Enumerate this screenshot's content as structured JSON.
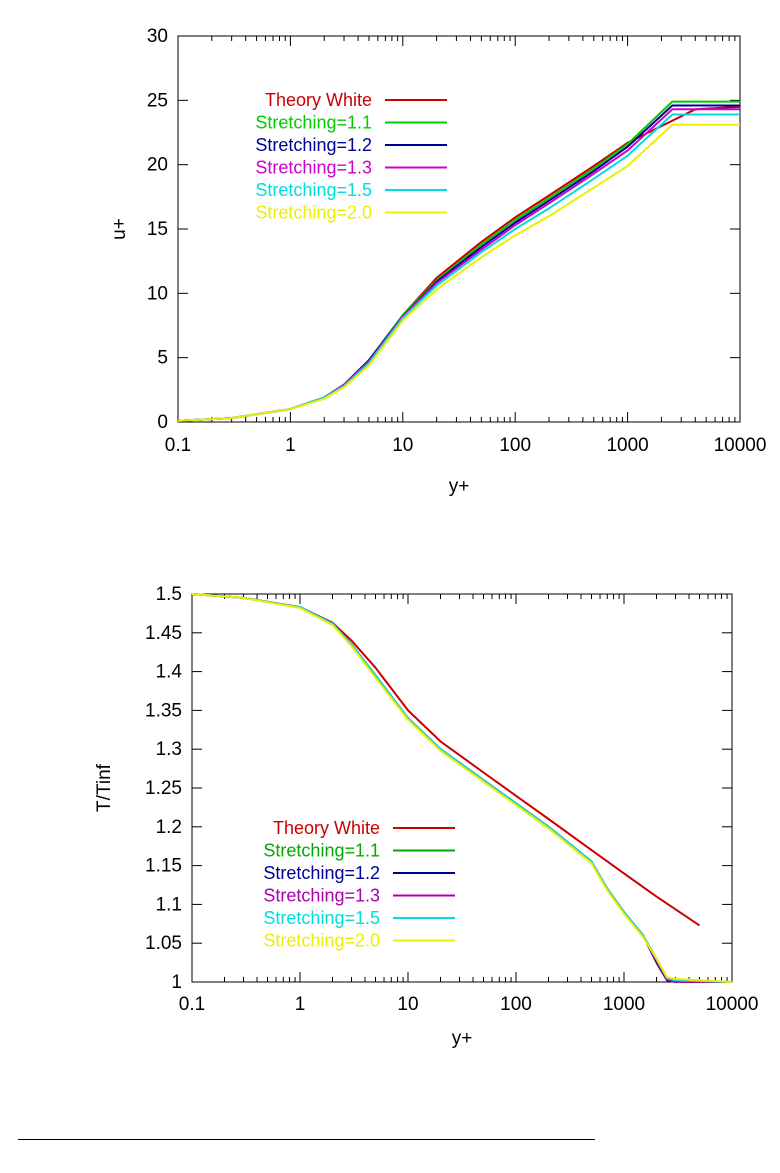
{
  "chart_data": [
    {
      "type": "line",
      "title": "",
      "xlabel": "y+",
      "ylabel": "u+",
      "xscale": "log",
      "xlim": [
        0.1,
        10000
      ],
      "ylim": [
        0,
        30
      ],
      "xticks": [
        "0.1",
        "1",
        "10",
        "100",
        "1000",
        "10000"
      ],
      "yticks": [
        "0",
        "5",
        "10",
        "15",
        "20",
        "25",
        "30"
      ],
      "grid": false,
      "legend_position": "top-left",
      "series": [
        {
          "name": "Theory White",
          "color": "#cc0000",
          "x": [
            0.1,
            0.3,
            1,
            2,
            3,
            5,
            10,
            20,
            50,
            100,
            200,
            500,
            1000,
            2000,
            4000,
            10000
          ],
          "y": [
            0.1,
            0.3,
            1.0,
            1.9,
            2.9,
            4.8,
            8.3,
            11.2,
            14.0,
            15.9,
            17.6,
            19.9,
            21.7,
            23.0,
            24.3,
            24.5
          ]
        },
        {
          "name": "Stretching=1.1",
          "color": "#00cc00",
          "x": [
            0.1,
            0.3,
            1,
            2,
            3,
            5,
            10,
            20,
            50,
            100,
            200,
            500,
            1000,
            2500,
            10000
          ],
          "y": [
            0.1,
            0.3,
            1.0,
            1.9,
            2.9,
            4.8,
            8.3,
            11.0,
            13.8,
            15.7,
            17.4,
            19.7,
            21.6,
            24.9,
            24.9
          ]
        },
        {
          "name": "Stretching=1.2",
          "color": "#000099",
          "x": [
            0.1,
            0.3,
            1,
            2,
            3,
            5,
            10,
            20,
            50,
            100,
            200,
            500,
            1000,
            2500,
            10000
          ],
          "y": [
            0.1,
            0.3,
            1.0,
            1.9,
            2.9,
            4.8,
            8.2,
            10.9,
            13.6,
            15.5,
            17.2,
            19.5,
            21.4,
            24.6,
            24.6
          ]
        },
        {
          "name": "Stretching=1.3",
          "color": "#cc00cc",
          "x": [
            0.1,
            0.3,
            1,
            2,
            3,
            5,
            10,
            20,
            50,
            100,
            200,
            500,
            1000,
            2500,
            10000
          ],
          "y": [
            0.1,
            0.3,
            1.0,
            1.9,
            2.9,
            4.7,
            8.2,
            10.8,
            13.4,
            15.3,
            17.0,
            19.3,
            21.1,
            24.3,
            24.3
          ]
        },
        {
          "name": "Stretching=1.5",
          "color": "#00dddd",
          "x": [
            0.1,
            0.3,
            1,
            2,
            3,
            5,
            10,
            20,
            50,
            100,
            200,
            500,
            1000,
            2500,
            10000
          ],
          "y": [
            0.1,
            0.3,
            1.0,
            1.9,
            2.8,
            4.6,
            8.1,
            10.6,
            13.2,
            15.0,
            16.6,
            18.9,
            20.7,
            23.9,
            23.9
          ]
        },
        {
          "name": "Stretching=2.0",
          "color": "#eeee00",
          "x": [
            0.1,
            0.3,
            1,
            2,
            3,
            5,
            10,
            20,
            50,
            100,
            200,
            500,
            1000,
            2500,
            10000
          ],
          "y": [
            0.1,
            0.3,
            1.0,
            1.8,
            2.7,
            4.4,
            7.9,
            10.3,
            12.8,
            14.5,
            16.0,
            18.2,
            19.9,
            23.1,
            23.1
          ]
        }
      ]
    },
    {
      "type": "line",
      "title": "",
      "xlabel": "y+",
      "ylabel": "T/Tinf",
      "xscale": "log",
      "xlim": [
        0.1,
        10000
      ],
      "ylim": [
        1,
        1.5
      ],
      "xticks": [
        "0.1",
        "1",
        "10",
        "100",
        "1000",
        "10000"
      ],
      "yticks": [
        "1",
        "1.05",
        "1.1",
        "1.15",
        "1.2",
        "1.25",
        "1.3",
        "1.35",
        "1.4",
        "1.45",
        "1.5"
      ],
      "grid": false,
      "legend_position": "bottom-left",
      "series": [
        {
          "name": "Theory White",
          "color": "#cc0000",
          "x": [
            0.1,
            0.3,
            1,
            2,
            3,
            5,
            10,
            20,
            50,
            100,
            200,
            500,
            1000,
            2000,
            5000
          ],
          "y": [
            1.5,
            1.495,
            1.483,
            1.463,
            1.44,
            1.405,
            1.35,
            1.31,
            1.27,
            1.24,
            1.21,
            1.17,
            1.14,
            1.11,
            1.073
          ]
        },
        {
          "name": "Stretching=1.1",
          "color": "#00aa00",
          "x": [
            0.1,
            0.3,
            1,
            2,
            3,
            5,
            10,
            20,
            50,
            100,
            200,
            500,
            700,
            1000,
            1500,
            2000,
            2500,
            3000,
            10000
          ],
          "y": [
            1.5,
            1.495,
            1.483,
            1.462,
            1.435,
            1.395,
            1.34,
            1.3,
            1.26,
            1.23,
            1.2,
            1.155,
            1.12,
            1.09,
            1.06,
            1.03,
            1.004,
            1.002,
            1.0
          ]
        },
        {
          "name": "Stretching=1.2",
          "color": "#000099",
          "x": [
            0.1,
            0.3,
            1,
            2,
            3,
            5,
            10,
            20,
            50,
            100,
            200,
            500,
            700,
            1000,
            1500,
            2000,
            2500,
            3000,
            10000
          ],
          "y": [
            1.5,
            1.495,
            1.483,
            1.462,
            1.435,
            1.395,
            1.34,
            1.3,
            1.26,
            1.23,
            1.2,
            1.155,
            1.12,
            1.09,
            1.06,
            1.025,
            1.002,
            1.0,
            1.0
          ]
        },
        {
          "name": "Stretching=1.3",
          "color": "#aa00aa",
          "x": [
            0.1,
            0.3,
            1,
            2,
            3,
            5,
            10,
            20,
            50,
            100,
            200,
            500,
            700,
            1000,
            1500,
            2000,
            2500,
            3000,
            10000
          ],
          "y": [
            1.5,
            1.495,
            1.483,
            1.462,
            1.435,
            1.395,
            1.34,
            1.3,
            1.26,
            1.23,
            1.2,
            1.155,
            1.12,
            1.09,
            1.06,
            1.027,
            1.003,
            1.0,
            1.0
          ]
        },
        {
          "name": "Stretching=1.5",
          "color": "#00dddd",
          "x": [
            0.1,
            0.3,
            1,
            2,
            3,
            5,
            10,
            20,
            50,
            100,
            200,
            500,
            700,
            1000,
            1500,
            2000,
            2500,
            3000,
            10000
          ],
          "y": [
            1.5,
            1.495,
            1.483,
            1.462,
            1.435,
            1.395,
            1.34,
            1.3,
            1.26,
            1.23,
            1.2,
            1.155,
            1.12,
            1.09,
            1.06,
            1.03,
            1.005,
            1.002,
            1.0
          ]
        },
        {
          "name": "Stretching=2.0",
          "color": "#eeee00",
          "x": [
            0.1,
            0.3,
            1,
            2,
            3,
            5,
            10,
            20,
            50,
            100,
            200,
            500,
            700,
            1000,
            1500,
            2000,
            2500,
            3000,
            10000
          ],
          "y": [
            1.5,
            1.495,
            1.482,
            1.46,
            1.433,
            1.392,
            1.338,
            1.298,
            1.258,
            1.228,
            1.198,
            1.153,
            1.118,
            1.088,
            1.058,
            1.03,
            1.006,
            1.004,
            1.0
          ]
        }
      ]
    }
  ]
}
